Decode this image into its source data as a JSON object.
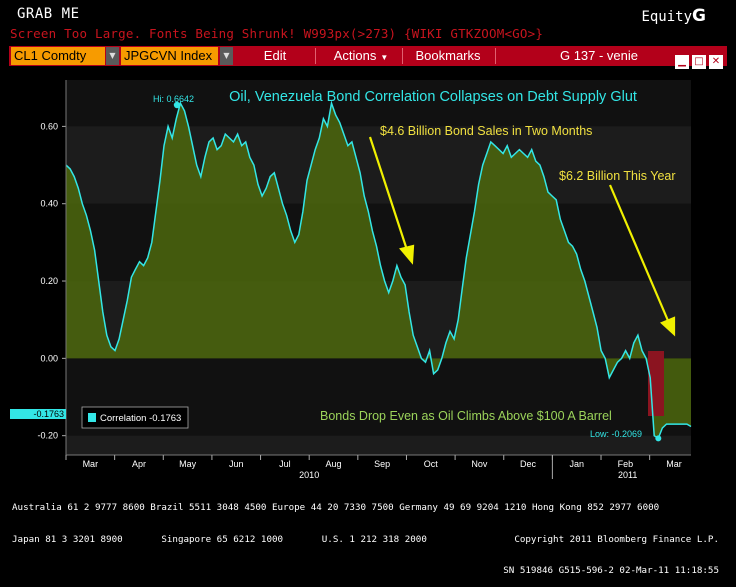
{
  "header": {
    "grab_label": "GRAB ME",
    "equity_prefix": "Equity",
    "equity_mark": "G",
    "warning": "Screen Too Large. Fonts Being Shrunk! W993px(>273) {WIKI GTKZOOM<GO>}"
  },
  "toolbar": {
    "field1": "CL1 Comdty",
    "field2": "JPGCVN Index",
    "edit": "Edit",
    "actions": "Actions",
    "bookmarks": "Bookmarks",
    "page": "G 137 - venie",
    "icons": [
      "minimize-icon",
      "maximize-icon",
      "close-icon"
    ]
  },
  "colors": {
    "line": "#33e6e6",
    "fill": "#4e6a0c",
    "panel": "#141414",
    "arrow": "#f0f000",
    "title": "#33e6e6",
    "annotation": "#f0e040",
    "bottom_annotation": "#9bd35a",
    "drop_box": "#8b1420",
    "toolbar": "#b3001a",
    "field": "#f79b00"
  },
  "chart_data": {
    "type": "area",
    "title": "Oil, Venezuela Bond Correlation Collapses on Debt Supply Glut",
    "ylim": [
      -0.25,
      0.72
    ],
    "yticks": [
      "0.60",
      "0.40",
      "0.20",
      "0.00",
      "-0.20"
    ],
    "ytick_values": [
      0.6,
      0.4,
      0.2,
      0.0,
      -0.2
    ],
    "months": [
      "Mar",
      "Apr",
      "May",
      "Jun",
      "Jul",
      "Aug",
      "Sep",
      "Oct",
      "Nov",
      "Dec",
      "Jan",
      "Feb",
      "Mar"
    ],
    "years": [
      "2010",
      "2011"
    ],
    "legend": {
      "label": "Correlation -0.1763"
    },
    "last_value_label": "-0.1763",
    "hi": {
      "label": "Hi: 0.6642",
      "value": 0.6642
    },
    "low": {
      "label": "Low: -0.2069",
      "value": -0.2069
    },
    "annotations": {
      "bond_sales": "$4.6 Billion Bond Sales in Two Months",
      "this_year": "$6.2 Billion This Year",
      "bottom": "Bonds Drop Even as Oil Climbs Above $100 A Barrel"
    },
    "series": [
      {
        "name": "Correlation",
        "values": [
          0.5,
          0.49,
          0.47,
          0.44,
          0.4,
          0.37,
          0.33,
          0.28,
          0.2,
          0.12,
          0.06,
          0.03,
          0.02,
          0.05,
          0.1,
          0.15,
          0.21,
          0.23,
          0.25,
          0.24,
          0.26,
          0.3,
          0.38,
          0.46,
          0.55,
          0.6,
          0.57,
          0.62,
          0.66,
          0.64,
          0.6,
          0.55,
          0.5,
          0.47,
          0.52,
          0.56,
          0.57,
          0.54,
          0.55,
          0.58,
          0.57,
          0.56,
          0.58,
          0.55,
          0.56,
          0.52,
          0.5,
          0.45,
          0.42,
          0.44,
          0.47,
          0.48,
          0.44,
          0.4,
          0.37,
          0.33,
          0.3,
          0.32,
          0.38,
          0.46,
          0.5,
          0.54,
          0.57,
          0.62,
          0.6,
          0.66,
          0.63,
          0.61,
          0.58,
          0.55,
          0.56,
          0.52,
          0.48,
          0.42,
          0.38,
          0.33,
          0.29,
          0.24,
          0.2,
          0.17,
          0.2,
          0.24,
          0.21,
          0.19,
          0.12,
          0.06,
          0.03,
          0.0,
          -0.01,
          0.02,
          -0.04,
          -0.03,
          0.0,
          0.04,
          0.07,
          0.05,
          0.1,
          0.18,
          0.26,
          0.32,
          0.38,
          0.45,
          0.5,
          0.53,
          0.56,
          0.55,
          0.54,
          0.53,
          0.55,
          0.52,
          0.53,
          0.54,
          0.53,
          0.52,
          0.54,
          0.51,
          0.5,
          0.47,
          0.43,
          0.42,
          0.41,
          0.36,
          0.33,
          0.3,
          0.29,
          0.27,
          0.23,
          0.2,
          0.16,
          0.12,
          0.08,
          0.02,
          0.0,
          -0.05,
          -0.03,
          -0.01,
          0.0,
          0.02,
          0.0,
          0.04,
          0.06,
          0.02,
          0.0,
          -0.05,
          -0.2,
          -0.2069,
          -0.18,
          -0.17,
          -0.17,
          -0.17,
          -0.17,
          -0.17,
          -0.17,
          -0.1763
        ]
      }
    ]
  },
  "footer": {
    "line1": "Australia 61 2 9777 8600 Brazil 5511 3048 4500 Europe 44 20 7330 7500 Germany 49 69 9204 1210 Hong Kong 852 2977 6000",
    "line2": "Japan 81 3 3201 8900       Singapore 65 6212 1000       U.S. 1 212 318 2000",
    "line2_right": "Copyright 2011 Bloomberg Finance L.P.",
    "line3_right": "SN 519846 G515-596-2 02-Mar-11 11:18:55"
  }
}
